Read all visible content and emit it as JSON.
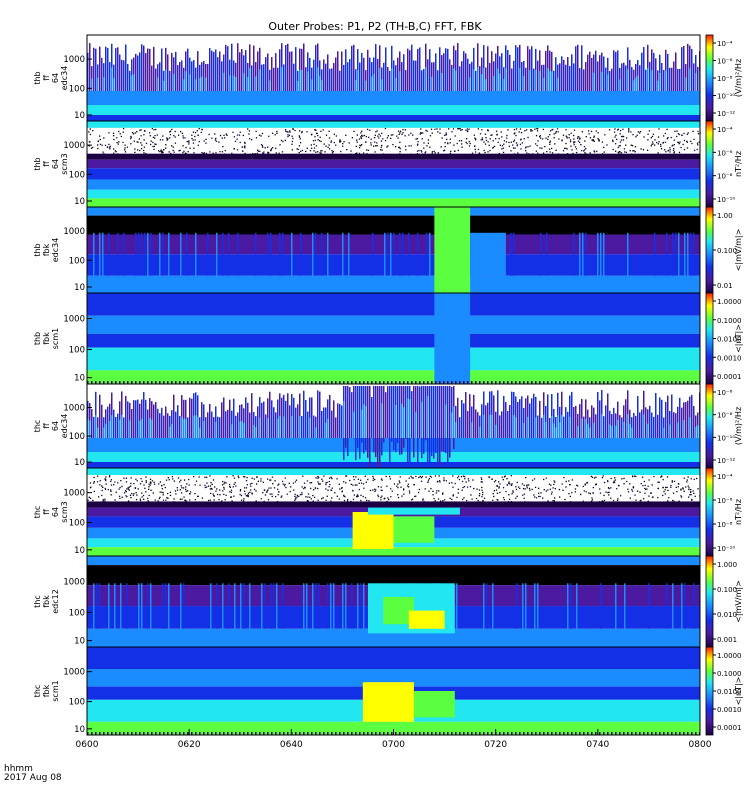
{
  "title": "Outer Probes: P1, P2 (TH-B,C) FFT, FBK",
  "footer": {
    "time_format": "hhmm",
    "date": "2017 Aug 08"
  },
  "colors": {
    "black": "#000000",
    "dark_purple": "#1c0044",
    "purple": "#4b1aa0",
    "blue": "#1430e6",
    "cyan_blue": "#1a8cff",
    "cyan": "#22e6f0",
    "green": "#5cff40",
    "yellow": "#ffff00",
    "red": "#ff1c00"
  },
  "chart_data": {
    "type": "heatmap",
    "x_axis": {
      "ticks": [
        "0600",
        "0620",
        "0640",
        "0700",
        "0720",
        "0740",
        "0800"
      ]
    },
    "panels": [
      {
        "id": "thb_ff_64_edc34",
        "ylabel": [
          "thb",
          "ff",
          "64",
          "edc34"
        ],
        "yticks": [
          "1000",
          "100",
          "10"
        ],
        "colorbar": {
          "label": "(V/m)²/Hz",
          "ticks": [
            "10⁻⁴",
            "10⁻⁶",
            "10⁻⁸",
            "10⁻¹⁰",
            "10⁻¹²"
          ]
        }
      },
      {
        "id": "thb_ff_64_scm3",
        "ylabel": [
          "thb",
          "ff",
          "64",
          "scm3"
        ],
        "yticks": [
          "1000",
          "100",
          "10"
        ],
        "colorbar": {
          "label": "nT²/Hz",
          "ticks": [
            "10⁻⁴",
            "10⁻⁶",
            "10⁻⁸",
            "10⁻¹⁰"
          ]
        }
      },
      {
        "id": "thb_fbk_edc34",
        "ylabel": [
          "thb",
          "fbk",
          "edc34"
        ],
        "yticks": [
          "1000",
          "100",
          "10"
        ],
        "colorbar": {
          "label": "<|mV/m|>",
          "ticks": [
            "1.00",
            "0.100",
            "0.01"
          ]
        }
      },
      {
        "id": "thb_fbk_scm1",
        "ylabel": [
          "thb",
          "fbk",
          "scm1"
        ],
        "yticks": [
          "1000",
          "100",
          "10"
        ],
        "colorbar": {
          "label": "<|nT|>",
          "ticks": [
            "1.0000",
            "0.1000",
            "0.0100",
            "0.0010",
            "0.0001"
          ]
        }
      },
      {
        "id": "thc_ff_64_edc34",
        "ylabel": [
          "thc",
          "ff",
          "64",
          "edc34"
        ],
        "yticks": [
          "1000",
          "100",
          "10"
        ],
        "colorbar": {
          "label": "(V/m)²/Hz",
          "ticks": [
            "10⁻⁶",
            "10⁻⁸",
            "10⁻¹⁰",
            "10⁻¹²"
          ]
        }
      },
      {
        "id": "thc_ff_64_scm3",
        "ylabel": [
          "thc",
          "ff",
          "64",
          "scm3"
        ],
        "yticks": [
          "1000",
          "100",
          "10"
        ],
        "colorbar": {
          "label": "nT²/Hz",
          "ticks": [
            "10⁻⁴",
            "10⁻⁶",
            "10⁻⁸",
            "10⁻¹⁰"
          ]
        }
      },
      {
        "id": "thc_fbk_edc12",
        "ylabel": [
          "thc",
          "fbk",
          "edc12"
        ],
        "yticks": [
          "1000",
          "100",
          "10"
        ],
        "colorbar": {
          "label": "<|mV/m|>",
          "ticks": [
            "1.000",
            "0.100",
            "0.010",
            "0.001"
          ]
        }
      },
      {
        "id": "thc_fbk_scm1",
        "ylabel": [
          "thc",
          "fbk",
          "scm1"
        ],
        "yticks": [
          "1000",
          "100",
          "10"
        ],
        "colorbar": {
          "label": "<|nT|>",
          "ticks": [
            "1.0000",
            "0.1000",
            "0.0100",
            "0.0010",
            "0.0001"
          ]
        }
      }
    ]
  }
}
